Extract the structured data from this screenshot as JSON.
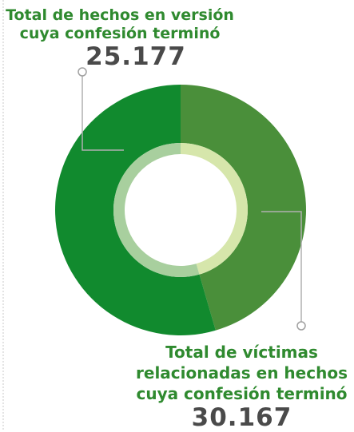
{
  "chart_data": {
    "type": "pie",
    "categories": [
      "Total de hechos en versión cuya confesión terminó",
      "Total de víctimas relacionadas en hechos cuya confesión terminó"
    ],
    "values": [
      25177,
      30167
    ],
    "value_labels": [
      "25.177",
      "30.167"
    ],
    "colors": [
      "#4a8f3a",
      "#118a2e"
    ],
    "inner_colors": [
      "#d6e6ab",
      "#a8cf9e"
    ]
  }
}
